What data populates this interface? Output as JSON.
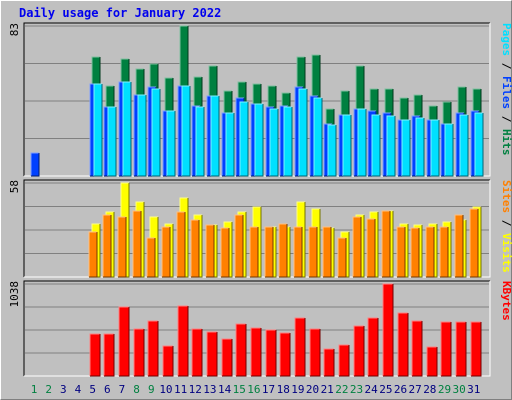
{
  "title": "Daily usage for January 2022",
  "colors": {
    "hits": "#008040",
    "files": "#0040ff",
    "pages": "#00e0ff",
    "visits": "#ffff00",
    "sites": "#ff8000",
    "kbytes": "#ff0000",
    "weekend_day": "#008040",
    "weekday": "#000080"
  },
  "chart_data": [
    {
      "type": "bar",
      "panel": "requests",
      "ymax_label": "83",
      "legend": [
        "Pages",
        "/",
        "Files",
        "/",
        "Hits"
      ],
      "x": [
        1,
        2,
        3,
        4,
        5,
        6,
        7,
        8,
        9,
        10,
        11,
        12,
        13,
        14,
        15,
        16,
        17,
        18,
        19,
        20,
        21,
        22,
        23,
        24,
        25,
        26,
        27,
        28,
        29,
        30,
        31
      ],
      "series": [
        {
          "name": "Hits",
          "values": [
            0,
            0,
            0,
            0,
            66,
            50,
            65,
            59,
            62,
            54,
            83,
            55,
            61,
            47,
            52,
            51,
            50,
            46,
            66,
            67,
            37,
            47,
            61,
            48,
            48,
            43,
            45,
            39,
            41,
            49,
            48
          ]
        },
        {
          "name": "Files",
          "values": [
            13,
            0,
            0,
            0,
            51,
            38,
            52,
            45,
            49,
            36,
            50,
            39,
            44,
            35,
            43,
            40,
            38,
            39,
            49,
            44,
            29,
            34,
            37,
            36,
            35,
            31,
            33,
            31,
            29,
            35,
            36
          ]
        },
        {
          "name": "Pages",
          "values": [
            0,
            0,
            0,
            0,
            51,
            38,
            52,
            45,
            48,
            36,
            50,
            38,
            44,
            35,
            41,
            40,
            37,
            38,
            48,
            43,
            28,
            34,
            37,
            34,
            33,
            31,
            32,
            31,
            29,
            34,
            35
          ]
        }
      ]
    },
    {
      "type": "bar",
      "panel": "visits",
      "ymax_label": "58",
      "legend": [
        "Sites",
        "/",
        "Visits"
      ],
      "x": [
        1,
        2,
        3,
        4,
        5,
        6,
        7,
        8,
        9,
        10,
        11,
        12,
        13,
        14,
        15,
        16,
        17,
        18,
        19,
        20,
        21,
        22,
        23,
        24,
        25,
        26,
        27,
        28,
        29,
        30,
        31
      ],
      "series": [
        {
          "name": "Visits",
          "values": [
            0,
            0,
            0,
            0,
            33,
            40,
            58,
            46,
            37,
            33,
            49,
            38,
            32,
            34,
            40,
            43,
            31,
            31,
            46,
            42,
            30,
            28,
            38,
            40,
            41,
            33,
            32,
            33,
            34,
            35,
            43
          ]
        },
        {
          "name": "Sites",
          "values": [
            0,
            0,
            0,
            0,
            28,
            38,
            37,
            41,
            24,
            31,
            40,
            35,
            32,
            30,
            38,
            31,
            31,
            33,
            31,
            31,
            31,
            24,
            37,
            36,
            41,
            31,
            30,
            31,
            31,
            38,
            42
          ]
        }
      ]
    },
    {
      "type": "bar",
      "panel": "kbytes",
      "ymax_label": "1038",
      "legend": [
        "KBytes"
      ],
      "x": [
        1,
        2,
        3,
        4,
        5,
        6,
        7,
        8,
        9,
        10,
        11,
        12,
        13,
        14,
        15,
        16,
        17,
        18,
        19,
        20,
        21,
        22,
        23,
        24,
        25,
        26,
        27,
        28,
        29,
        30,
        31
      ],
      "series": [
        {
          "name": "KBytes",
          "values": [
            0,
            0,
            0,
            0,
            470,
            470,
            780,
            530,
            620,
            340,
            790,
            530,
            500,
            420,
            590,
            540,
            520,
            480,
            650,
            530,
            300,
            350,
            560,
            660,
            1038,
            710,
            620,
            330,
            610,
            610,
            610
          ]
        }
      ]
    }
  ],
  "day_labels": [
    {
      "text": "1",
      "weekend": true
    },
    {
      "text": "2",
      "weekend": true
    },
    {
      "text": "3",
      "weekend": false
    },
    {
      "text": "4",
      "weekend": false
    },
    {
      "text": "5",
      "weekend": false
    },
    {
      "text": "6",
      "weekend": false
    },
    {
      "text": "7",
      "weekend": false
    },
    {
      "text": "8",
      "weekend": true
    },
    {
      "text": "9",
      "weekend": true
    },
    {
      "text": "10",
      "weekend": false
    },
    {
      "text": "11",
      "weekend": false
    },
    {
      "text": "12",
      "weekend": false
    },
    {
      "text": "13",
      "weekend": false
    },
    {
      "text": "14",
      "weekend": false
    },
    {
      "text": "15",
      "weekend": true
    },
    {
      "text": "16",
      "weekend": true
    },
    {
      "text": "17",
      "weekend": false
    },
    {
      "text": "18",
      "weekend": false
    },
    {
      "text": "19",
      "weekend": false
    },
    {
      "text": "20",
      "weekend": false
    },
    {
      "text": "21",
      "weekend": false
    },
    {
      "text": "22",
      "weekend": true
    },
    {
      "text": "23",
      "weekend": true
    },
    {
      "text": "24",
      "weekend": false
    },
    {
      "text": "25",
      "weekend": false
    },
    {
      "text": "26",
      "weekend": false
    },
    {
      "text": "27",
      "weekend": false
    },
    {
      "text": "28",
      "weekend": false
    },
    {
      "text": "29",
      "weekend": true
    },
    {
      "text": "30",
      "weekend": true
    },
    {
      "text": "31",
      "weekend": false
    }
  ]
}
